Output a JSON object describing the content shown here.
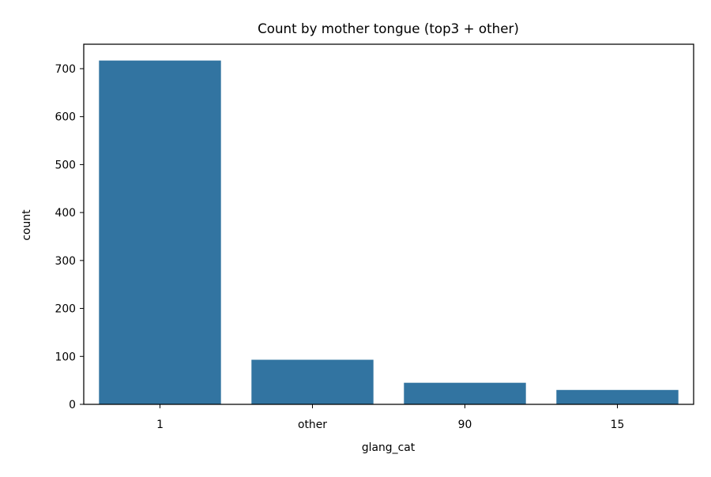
{
  "chart_data": {
    "type": "bar",
    "title": "Count by mother tongue (top3 + other)",
    "xlabel": "glang_cat",
    "ylabel": "count",
    "categories": [
      "1",
      "other",
      "90",
      "15"
    ],
    "values": [
      717,
      93,
      45,
      30
    ],
    "ylim": [
      0,
      751
    ],
    "yticks": [
      0,
      100,
      200,
      300,
      400,
      500,
      600,
      700
    ],
    "grid": false,
    "bar_color": "#3274a1"
  }
}
